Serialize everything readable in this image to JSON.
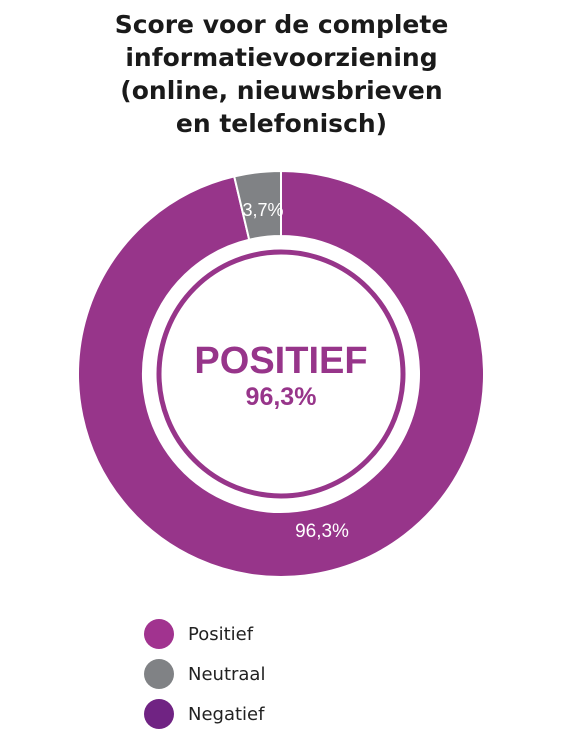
{
  "chart_data": {
    "type": "pie",
    "title_lines": [
      "Score voor de complete",
      "informatievoorziening",
      "(online, nieuwsbrieven",
      "en telefonisch)"
    ],
    "slices": [
      {
        "label": "Positief",
        "value": 96.3,
        "value_label": "96,3%",
        "color": "#97358a"
      },
      {
        "label": "Neutraal",
        "value": 3.7,
        "value_label": "3,7%",
        "color": "#808285"
      }
    ],
    "center_label": "POSITIEF",
    "center_value": "96,3%",
    "center_color": "#97358a",
    "legend": [
      {
        "label": "Positief",
        "color": "#a1338f"
      },
      {
        "label": "Neutraal",
        "color": "#808285"
      },
      {
        "label": "Negatief",
        "color": "#702383"
      }
    ],
    "legend_placement": "bottom-left"
  }
}
